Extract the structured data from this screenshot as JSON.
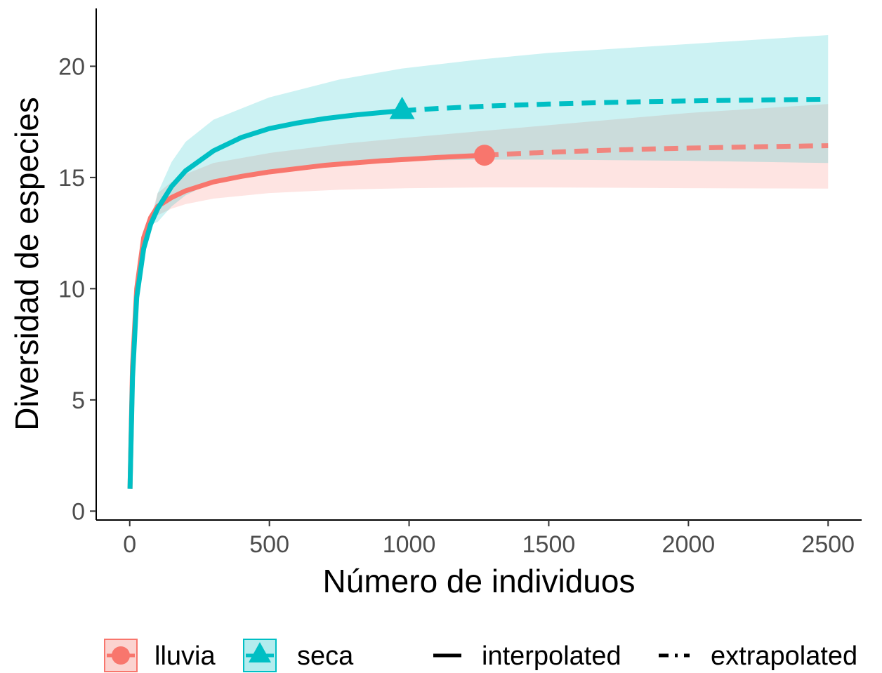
{
  "chart_data": {
    "type": "line",
    "title": "",
    "xlabel": "Número de individuos",
    "ylabel": "Diversidad de especies",
    "xlim": [
      -120,
      2620
    ],
    "ylim": [
      -0.4,
      22.6
    ],
    "x_ticks": [
      0,
      500,
      1000,
      1500,
      2000,
      2500
    ],
    "x_tick_labels": [
      "0",
      "500",
      "1000",
      "1500",
      "2000",
      "2500"
    ],
    "y_ticks": [
      0,
      5,
      10,
      15,
      20
    ],
    "y_tick_labels": [
      "0",
      "5",
      "10",
      "15",
      "20"
    ],
    "grid": false,
    "legend_position": "bottom",
    "series": [
      {
        "name": "lluvia",
        "color": "#F8766D",
        "marker": "circle",
        "observed_point": [
          1270,
          16
        ],
        "interpolated": {
          "x": [
            1,
            10,
            25,
            50,
            75,
            100,
            150,
            200,
            300,
            400,
            500,
            600,
            700,
            800,
            900,
            1000,
            1100,
            1200,
            1270
          ],
          "y": [
            1,
            6.5,
            10,
            12.3,
            13.2,
            13.7,
            14.1,
            14.4,
            14.8,
            15.05,
            15.25,
            15.4,
            15.55,
            15.65,
            15.75,
            15.82,
            15.9,
            15.96,
            16
          ]
        },
        "extrapolated": {
          "x": [
            1270,
            1400,
            1600,
            1800,
            2000,
            2200,
            2400,
            2500
          ],
          "y": [
            16,
            16.08,
            16.18,
            16.26,
            16.32,
            16.37,
            16.41,
            16.43
          ]
        },
        "ci_lower": {
          "x": [
            100,
            150,
            200,
            300,
            500,
            750,
            1000,
            1270,
            1500,
            2000,
            2500
          ],
          "y": [
            13.3,
            13.6,
            13.8,
            14.05,
            14.3,
            14.45,
            14.52,
            14.55,
            14.55,
            14.52,
            14.5
          ]
        },
        "ci_upper": {
          "x": [
            100,
            150,
            200,
            300,
            500,
            750,
            1000,
            1270,
            1500,
            2000,
            2500
          ],
          "y": [
            14.3,
            14.8,
            15.15,
            15.65,
            16.1,
            16.5,
            16.8,
            17.1,
            17.35,
            17.9,
            18.3
          ]
        }
      },
      {
        "name": "seca",
        "color": "#00BFC4",
        "marker": "triangle",
        "observed_point": [
          975,
          18
        ],
        "interpolated": {
          "x": [
            1,
            10,
            25,
            50,
            75,
            100,
            150,
            200,
            300,
            400,
            500,
            600,
            700,
            800,
            900,
            975
          ],
          "y": [
            1,
            6,
            9.6,
            11.8,
            12.9,
            13.6,
            14.6,
            15.3,
            16.2,
            16.8,
            17.2,
            17.45,
            17.65,
            17.8,
            17.92,
            18
          ]
        },
        "extrapolated": {
          "x": [
            975,
            1100,
            1300,
            1500,
            1700,
            1900,
            2100,
            2300,
            2500
          ],
          "y": [
            18,
            18.1,
            18.22,
            18.3,
            18.37,
            18.42,
            18.46,
            18.49,
            18.52
          ]
        },
        "ci_lower": {
          "x": [
            100,
            150,
            200,
            300,
            500,
            750,
            975,
            1250,
            1500,
            2000,
            2500
          ],
          "y": [
            13,
            13.7,
            14.2,
            14.8,
            15.3,
            15.6,
            15.75,
            15.8,
            15.8,
            15.75,
            15.65
          ]
        },
        "ci_upper": {
          "x": [
            100,
            150,
            200,
            300,
            500,
            750,
            975,
            1250,
            1500,
            2000,
            2500
          ],
          "y": [
            14.3,
            15.7,
            16.6,
            17.6,
            18.6,
            19.4,
            19.9,
            20.3,
            20.6,
            21,
            21.4
          ]
        }
      }
    ],
    "legend": {
      "groups": [
        {
          "label": "lluvia",
          "marker": "circle",
          "color": "#F8766D"
        },
        {
          "label": "seca",
          "marker": "triangle",
          "color": "#00BFC4"
        }
      ],
      "methods": [
        {
          "label": "interpolated",
          "style": "solid"
        },
        {
          "label": "extrapolated",
          "style": "dashed"
        }
      ]
    }
  }
}
